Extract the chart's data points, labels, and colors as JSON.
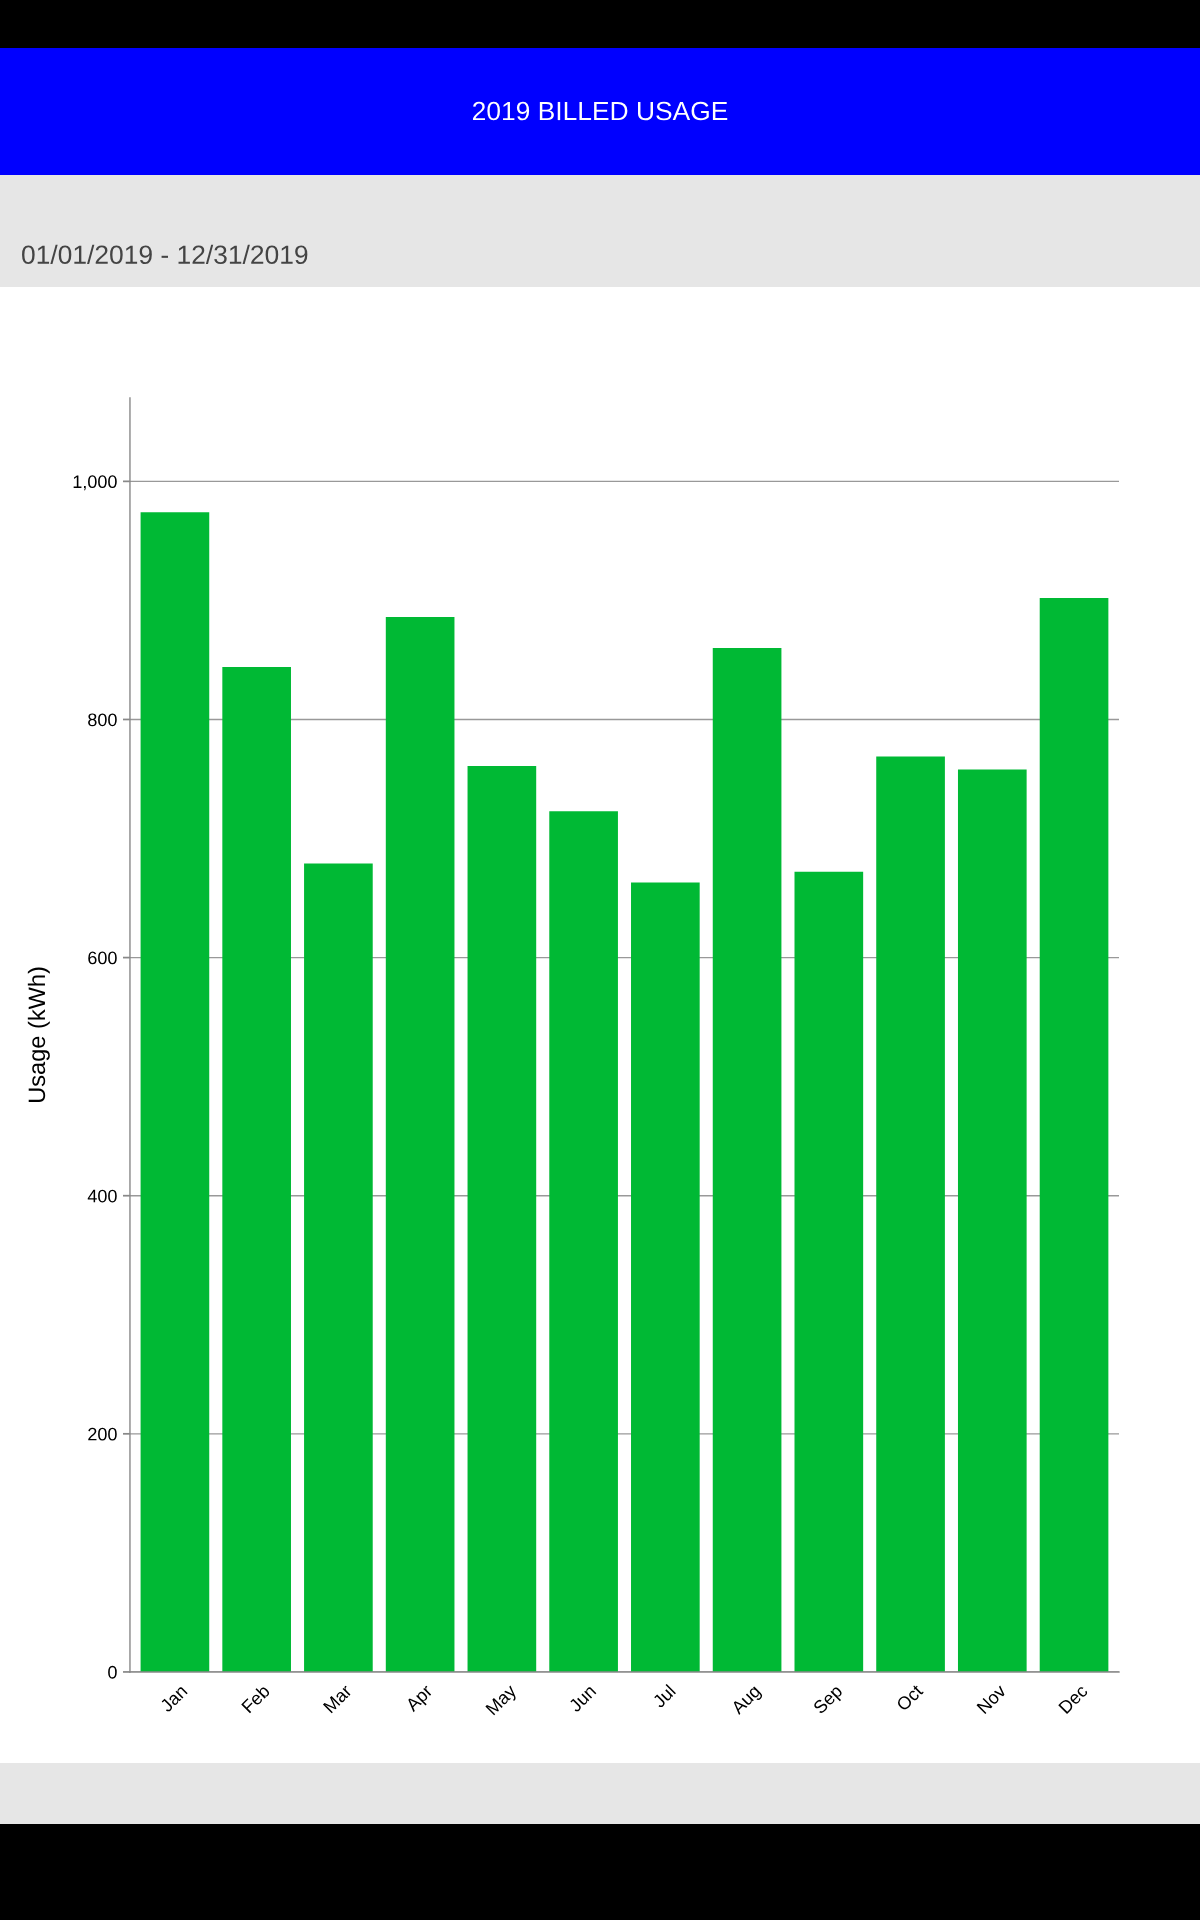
{
  "chart_data": {
    "type": "bar",
    "title": "2019 BILLED USAGE",
    "subtitle": "01/01/2019 - 12/31/2019",
    "ylabel": "Usage (kWh)",
    "categories": [
      "Jan",
      "Feb",
      "Mar",
      "Apr",
      "May",
      "Jun",
      "Jul",
      "Aug",
      "Sep",
      "Oct",
      "Nov",
      "Dec"
    ],
    "values": [
      974,
      844,
      679,
      886,
      761,
      723,
      663,
      860,
      672,
      769,
      758,
      902
    ],
    "color": "#00b934",
    "ylim": [
      0,
      1070
    ],
    "yticks": [
      0,
      200,
      400,
      600,
      800,
      {
        "value": 1000,
        "label": "1,000"
      }
    ],
    "grid": "y"
  }
}
